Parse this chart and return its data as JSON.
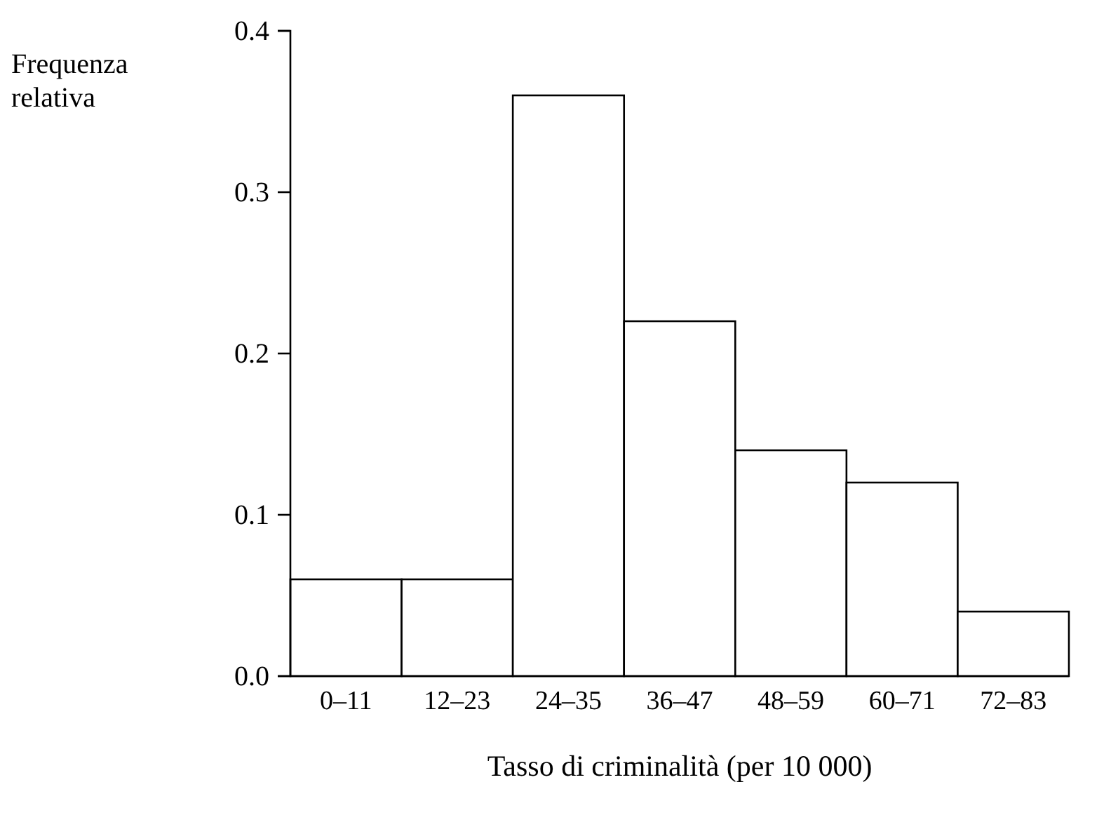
{
  "chart_data": {
    "type": "bar",
    "xlabel": "Tasso di criminalità (per 10 000)",
    "ylabel": "Frequenza relativa",
    "categories": [
      "0–11",
      "12–23",
      "24–35",
      "36–47",
      "48–59",
      "60–71",
      "72–83"
    ],
    "values": [
      0.06,
      0.06,
      0.36,
      0.22,
      0.14,
      0.12,
      0.04
    ],
    "color": "#ffffff",
    "ylim": [
      0,
      0.4
    ],
    "yticks": [
      {
        "value": 0,
        "label": "0.0"
      },
      0.1,
      0.2,
      0.3,
      0.4
    ]
  }
}
